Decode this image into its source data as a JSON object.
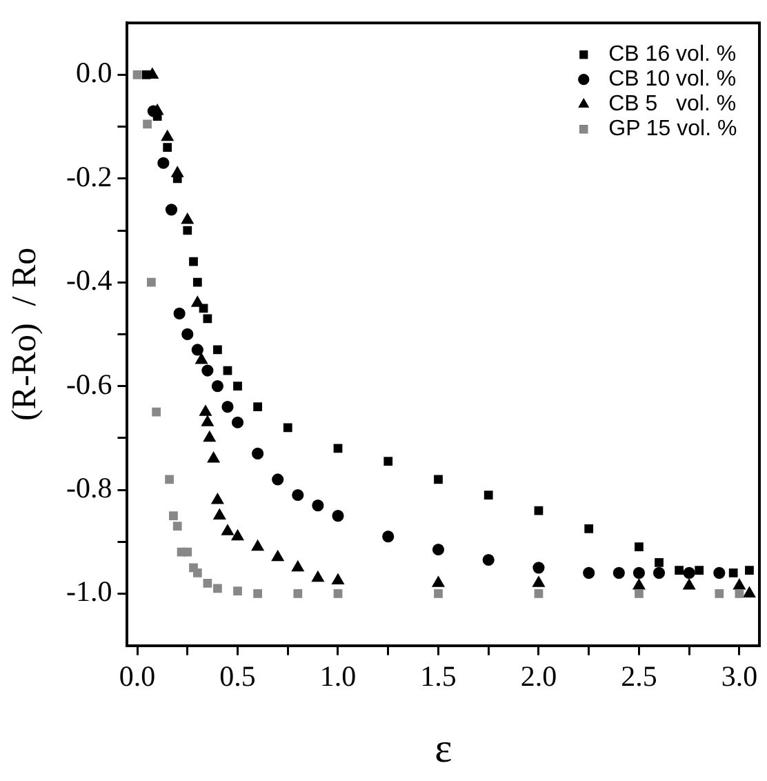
{
  "chart_data": {
    "type": "scatter",
    "xlabel": "ε",
    "ylabel": "(R-Ro)  / Ro",
    "xlim": [
      -0.05,
      3.1
    ],
    "ylim": [
      -1.1,
      0.1
    ],
    "xticks": [
      {
        "value": 0,
        "label": "0.0"
      },
      {
        "value": 0.25,
        "label": null
      },
      {
        "value": 0.5,
        "label": "0.5"
      },
      {
        "value": 0.75,
        "label": null
      },
      {
        "value": 1,
        "label": "1.0"
      },
      {
        "value": 1.25,
        "label": null
      },
      {
        "value": 1.5,
        "label": "1.5"
      },
      {
        "value": 1.75,
        "label": null
      },
      {
        "value": 2,
        "label": "2.0"
      },
      {
        "value": 2.25,
        "label": null
      },
      {
        "value": 2.5,
        "label": "2.5"
      },
      {
        "value": 2.75,
        "label": null
      },
      {
        "value": 3,
        "label": "3.0"
      }
    ],
    "yticks": [
      {
        "value": -1,
        "label": "-1.0"
      },
      {
        "value": -0.9,
        "label": null
      },
      {
        "value": -0.8,
        "label": "-0.8"
      },
      {
        "value": -0.7,
        "label": null
      },
      {
        "value": -0.6,
        "label": "-0.6"
      },
      {
        "value": -0.5,
        "label": null
      },
      {
        "value": -0.4,
        "label": "-0.4"
      },
      {
        "value": -0.3,
        "label": null
      },
      {
        "value": -0.2,
        "label": "-0.2"
      },
      {
        "value": -0.1,
        "label": null
      },
      {
        "value": 0,
        "label": "0.0"
      }
    ],
    "grid": false,
    "legend": "top right",
    "series": [
      {
        "name": "CB 16 vol. %",
        "color": "#000000",
        "marker": "square",
        "x": [
          0.045,
          0.1,
          0.15,
          0.2,
          0.25,
          0.28,
          0.3,
          0.33,
          0.35,
          0.4,
          0.45,
          0.5,
          0.6,
          0.75,
          1.0,
          1.25,
          1.5,
          1.75,
          2.0,
          2.25,
          2.5,
          2.6,
          2.7,
          2.8,
          2.97,
          3.05
        ],
        "values": [
          0,
          -0.08,
          -0.14,
          -0.2,
          -0.3,
          -0.36,
          -0.4,
          -0.45,
          -0.47,
          -0.53,
          -0.57,
          -0.6,
          -0.64,
          -0.68,
          -0.72,
          -0.745,
          -0.78,
          -0.81,
          -0.84,
          -0.875,
          -0.91,
          -0.94,
          -0.955,
          -0.955,
          -0.96,
          -0.955
        ]
      },
      {
        "name": "CB 10 vol. %",
        "color": "#000000",
        "marker": "circle",
        "x": [
          0.08,
          0.13,
          0.17,
          0.21,
          0.25,
          0.3,
          0.35,
          0.4,
          0.45,
          0.5,
          0.6,
          0.7,
          0.8,
          0.9,
          1.0,
          1.25,
          1.5,
          1.75,
          2.0,
          2.25,
          2.4,
          2.5,
          2.6,
          2.75,
          2.9
        ],
        "values": [
          -0.07,
          -0.17,
          -0.26,
          -0.46,
          -0.5,
          -0.53,
          -0.57,
          -0.6,
          -0.64,
          -0.67,
          -0.73,
          -0.78,
          -0.81,
          -0.83,
          -0.85,
          -0.89,
          -0.915,
          -0.935,
          -0.95,
          -0.96,
          -0.96,
          -0.96,
          -0.96,
          -0.96,
          -0.96
        ]
      },
      {
        "name": "CB 5   vol. %",
        "color": "#000000",
        "marker": "triangle",
        "x": [
          0.075,
          0.1,
          0.15,
          0.2,
          0.25,
          0.3,
          0.32,
          0.34,
          0.35,
          0.36,
          0.38,
          0.4,
          0.41,
          0.45,
          0.5,
          0.6,
          0.7,
          0.8,
          0.9,
          1.0,
          1.5,
          2.0,
          2.5,
          2.75,
          3.0,
          3.05
        ],
        "values": [
          0,
          -0.07,
          -0.12,
          -0.19,
          -0.28,
          -0.44,
          -0.55,
          -0.65,
          -0.67,
          -0.7,
          -0.74,
          -0.82,
          -0.85,
          -0.88,
          -0.89,
          -0.91,
          -0.93,
          -0.95,
          -0.97,
          -0.975,
          -0.98,
          -0.98,
          -0.985,
          -0.985,
          -0.985,
          -1.0
        ]
      },
      {
        "name": "GP 15 vol. %",
        "color": "#888888",
        "marker": "square",
        "x": [
          0.0,
          0.05,
          0.07,
          0.095,
          0.16,
          0.18,
          0.2,
          0.22,
          0.25,
          0.28,
          0.3,
          0.35,
          0.4,
          0.5,
          0.6,
          0.8,
          1.0,
          1.5,
          2.0,
          2.5,
          2.9,
          3.0
        ],
        "values": [
          0,
          -0.095,
          -0.4,
          -0.65,
          -0.78,
          -0.85,
          -0.87,
          -0.92,
          -0.92,
          -0.95,
          -0.96,
          -0.98,
          -0.99,
          -0.995,
          -1.0,
          -1.0,
          -1.0,
          -1.0,
          -1.0,
          -1.0,
          -1.0,
          -1.0
        ]
      }
    ]
  }
}
